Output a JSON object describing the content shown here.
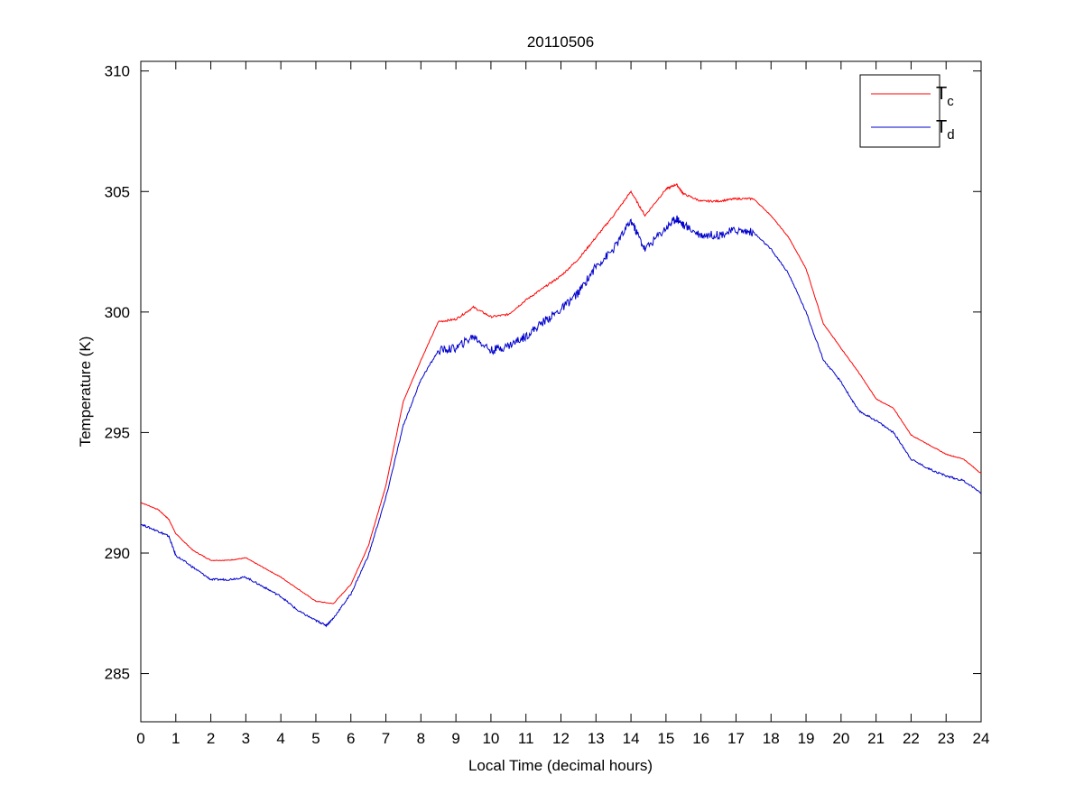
{
  "chart_data": {
    "type": "line",
    "title": "20110506",
    "xlabel": "Local Time (decimal hours)",
    "ylabel": "Temperature (K)",
    "xlim": [
      0,
      24
    ],
    "ylim": [
      283,
      310.4
    ],
    "xticks": [
      0,
      1,
      2,
      3,
      4,
      5,
      6,
      7,
      8,
      9,
      10,
      11,
      12,
      13,
      14,
      15,
      16,
      17,
      18,
      19,
      20,
      21,
      22,
      23,
      24
    ],
    "yticks": [
      285,
      290,
      295,
      300,
      305,
      310
    ],
    "grid": false,
    "legend_position": "top-right",
    "series": [
      {
        "name": "T",
        "subscript": "c",
        "color": "#ff0000",
        "x": [
          0,
          0.5,
          0.8,
          1,
          1.5,
          2,
          2.5,
          3,
          3.5,
          4,
          4.5,
          5,
          5.5,
          6,
          6.5,
          7,
          7.5,
          8,
          8.5,
          9,
          9.5,
          10,
          10.5,
          11,
          11.5,
          12,
          12.5,
          13,
          13.5,
          14,
          14.4,
          15,
          15.3,
          15.5,
          16,
          16.5,
          17,
          17.5,
          18,
          18.5,
          19,
          19.5,
          20,
          20.5,
          21,
          21.5,
          22,
          22.5,
          23,
          23.5,
          24
        ],
        "y": [
          292.1,
          291.8,
          291.4,
          290.8,
          290.1,
          289.7,
          289.7,
          289.8,
          289.4,
          289.0,
          288.5,
          288.0,
          287.9,
          288.7,
          290.3,
          292.8,
          296.3,
          298.0,
          299.6,
          299.7,
          300.2,
          299.8,
          299.9,
          300.5,
          301.0,
          301.5,
          302.2,
          303.1,
          304.0,
          305.0,
          304.0,
          305.1,
          305.3,
          304.9,
          304.6,
          304.6,
          304.7,
          304.7,
          304.0,
          303.1,
          301.8,
          299.5,
          298.5,
          297.5,
          296.4,
          296.0,
          294.9,
          294.5,
          294.1,
          293.9,
          293.3
        ]
      },
      {
        "name": "T",
        "subscript": "d",
        "color": "#0000cc",
        "x": [
          0,
          0.5,
          0.8,
          1,
          1.5,
          2,
          2.5,
          3,
          3.5,
          4,
          4.5,
          5,
          5.3,
          5.5,
          6,
          6.5,
          7,
          7.5,
          8,
          8.5,
          9,
          9.5,
          10,
          10.5,
          11,
          11.5,
          12,
          12.5,
          13,
          13.5,
          14,
          14.4,
          15,
          15.3,
          15.5,
          16,
          16.5,
          17,
          17.5,
          18,
          18.5,
          19,
          19.5,
          20,
          20.5,
          21,
          21.5,
          22,
          22.5,
          23,
          23.5,
          24
        ],
        "y": [
          291.2,
          290.9,
          290.7,
          289.9,
          289.4,
          288.9,
          288.9,
          289.0,
          288.6,
          288.2,
          287.6,
          287.2,
          287.0,
          287.3,
          288.3,
          289.9,
          292.3,
          295.3,
          297.2,
          298.4,
          298.5,
          299.0,
          298.4,
          298.6,
          299.0,
          299.6,
          300.1,
          300.8,
          301.9,
          302.6,
          303.8,
          302.6,
          303.5,
          303.9,
          303.6,
          303.2,
          303.2,
          303.4,
          303.3,
          302.6,
          301.6,
          300.0,
          298.0,
          297.1,
          295.9,
          295.5,
          295.0,
          293.9,
          293.5,
          293.2,
          293.0,
          292.5
        ]
      }
    ]
  }
}
